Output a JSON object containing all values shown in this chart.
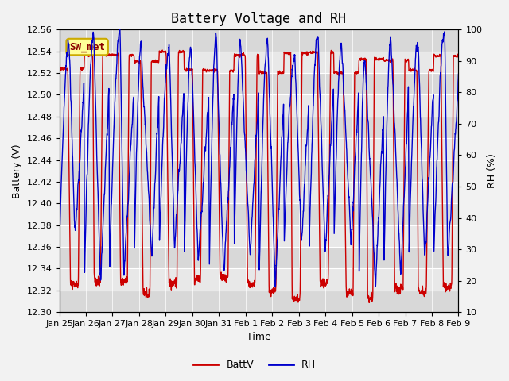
{
  "title": "Battery Voltage and RH",
  "xlabel": "Time",
  "ylabel_left": "Battery (V)",
  "ylabel_right": "RH (%)",
  "annotation": "SW_met",
  "ylim_left": [
    12.3,
    12.56
  ],
  "ylim_right": [
    10,
    100
  ],
  "yticks_left": [
    12.3,
    12.32,
    12.34,
    12.36,
    12.38,
    12.4,
    12.42,
    12.44,
    12.46,
    12.48,
    12.5,
    12.52,
    12.54,
    12.56
  ],
  "yticks_right": [
    10,
    20,
    30,
    40,
    50,
    60,
    70,
    80,
    90,
    100
  ],
  "x_tick_labels": [
    "Jan 25",
    "Jan 26",
    "Jan 27",
    "Jan 28",
    "Jan 29",
    "Jan 30",
    "Jan 31",
    "Feb 1",
    "Feb 2",
    "Feb 3",
    "Feb 4",
    "Feb 5",
    "Feb 6",
    "Feb 7",
    "Feb 8",
    "Feb 9"
  ],
  "battv_color": "#cc0000",
  "rh_color": "#0000cc",
  "background_color": "#f2f2f2",
  "plot_bg_light": "#e8e8e8",
  "plot_bg_dark": "#d8d8d8",
  "grid_color": "#ffffff",
  "legend_battv": "BattV",
  "legend_rh": "RH",
  "title_fontsize": 12,
  "label_fontsize": 9,
  "tick_fontsize": 8,
  "annotation_bg": "#ffff99",
  "annotation_border": "#ccaa00",
  "annotation_color": "#8b0000",
  "annotation_fontsize": 9
}
